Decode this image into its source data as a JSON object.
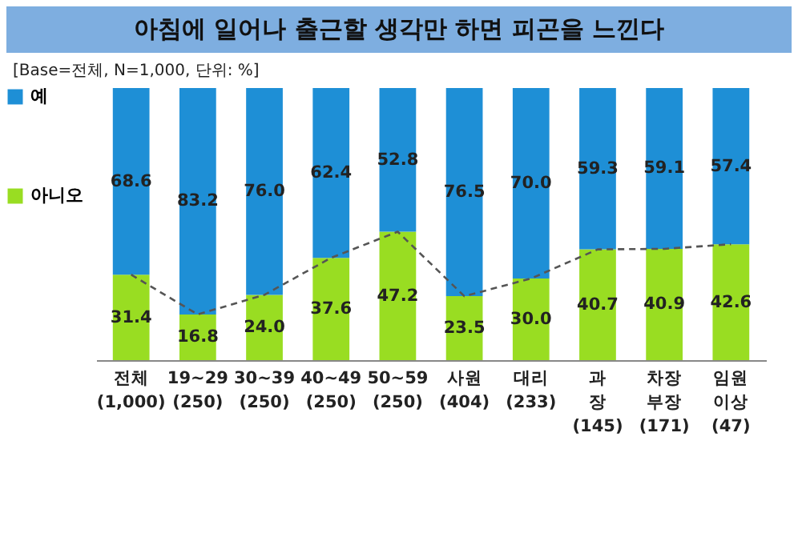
{
  "chart_data": {
    "type": "bar",
    "title": "아침에 일어나 출근할 생각만 하면 피곤을 느낀다",
    "annotations": [
      "[Base=전체, N=1,000, 단위: %]"
    ],
    "categories": [
      "전체\n(1,000)",
      "19~29\n(250)",
      "30~39\n(250)",
      "40~49\n(250)",
      "50~59\n(250)",
      "사원\n(404)",
      "대리\n(233)",
      "과\n장\n(145)",
      "차장\n부장\n(171)",
      "임원\n이상\n(47)"
    ],
    "stacked": true,
    "legend": "left",
    "tick_labels": "x",
    "grid": false,
    "series": [
      {
        "name": "아니오",
        "color": "#99dd22",
        "values": [
          31.4,
          16.8,
          24.0,
          37.6,
          47.2,
          23.5,
          30.0,
          40.7,
          40.9,
          42.6
        ],
        "value_labels": [
          "31.4",
          "16.8",
          "24.0",
          "37.6",
          "47.2",
          "23.5",
          "30.0",
          "40.7",
          "40.9",
          "42.6"
        ]
      },
      {
        "name": "예",
        "color": "#1e8fd6",
        "values": [
          68.6,
          83.2,
          76.0,
          62.4,
          52.8,
          76.5,
          70.0,
          59.3,
          59.1,
          57.4
        ],
        "value_labels": [
          "68.6",
          "83.2",
          "76.0",
          "62.4",
          "52.8",
          "76.5",
          "70.0",
          "59.3",
          "59.1",
          "57.4"
        ]
      },
      {
        "type": "line",
        "color": "#555555",
        "line_style": "dashed",
        "values": [
          31.4,
          16.8,
          24.0,
          37.6,
          47.2,
          23.5,
          30.0,
          40.7,
          40.9,
          42.6
        ]
      }
    ]
  }
}
